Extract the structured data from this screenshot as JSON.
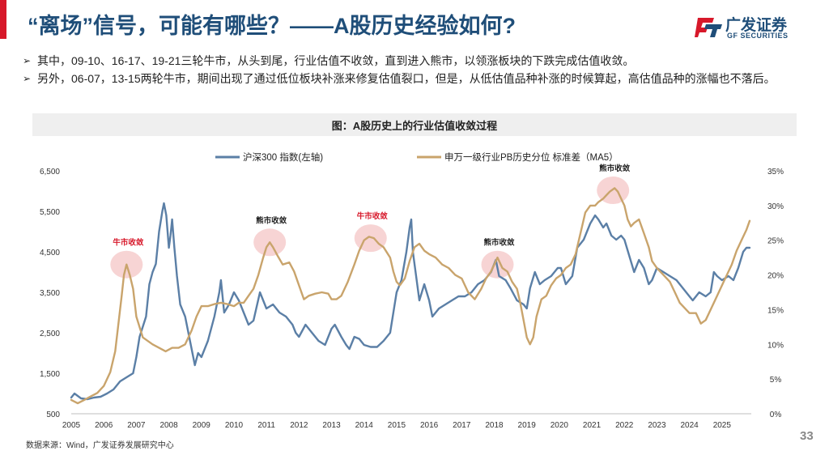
{
  "header": {
    "title": "“离场”信号，可能有哪些？——A股历史经验如何?",
    "logo_cn": "广发证券",
    "logo_en": "GF SECURITIES"
  },
  "bullets": [
    {
      "marker": "➢",
      "text": "其中，09-10、16-17、19-21三轮牛市，从头到尾，行业估值不收敛，直到进入熊市，以领涨板块的下跌完成估值收敛。"
    },
    {
      "marker": "➢",
      "text": "另外，06-07，13-15两轮牛市，期间出现了通过低位板块补涨来修复估值裂口，但是，从低估值品种补涨的时候算起，高估值品种的涨幅也不落后。"
    }
  ],
  "footer": {
    "source": "数据来源：Wind，广发证券发展研究中心",
    "page_number": "33"
  },
  "colors": {
    "title": "#1f4e79",
    "accent_red": "#d7182a",
    "series_left": "#5b7fa6",
    "series_right": "#c9a46c",
    "highlight": "#f4c6c6"
  },
  "chart_data": {
    "type": "line",
    "title": "图：A股历史上的行业估值收敛过程",
    "legend_position": "top",
    "xlim": [
      2005.0,
      2025.9
    ],
    "x_ticks": [
      "2005",
      "2006",
      "2007",
      "2008",
      "2009",
      "2010",
      "2011",
      "2012",
      "2013",
      "2014",
      "2015",
      "2016",
      "2017",
      "2018",
      "2019",
      "2020",
      "2021",
      "2022",
      "2023",
      "2024",
      "2025"
    ],
    "y_left": {
      "lim": [
        500,
        6500
      ],
      "ticks": [
        "500",
        "1,500",
        "2,500",
        "3,500",
        "4,500",
        "5,500",
        "6,500"
      ]
    },
    "y_right": {
      "lim": [
        0,
        35
      ],
      "ticks": [
        "0%",
        "5%",
        "10%",
        "15%",
        "20%",
        "25%",
        "30%",
        "35%"
      ]
    },
    "grid": false,
    "series": [
      {
        "name": "沪深300 指数(左轴)",
        "axis": "left",
        "points": [
          [
            2005.0,
            900
          ],
          [
            2005.1,
            1000
          ],
          [
            2005.3,
            880
          ],
          [
            2005.5,
            860
          ],
          [
            2005.7,
            900
          ],
          [
            2005.9,
            920
          ],
          [
            2006.1,
            1000
          ],
          [
            2006.3,
            1100
          ],
          [
            2006.5,
            1300
          ],
          [
            2006.7,
            1400
          ],
          [
            2006.9,
            1500
          ],
          [
            2007.0,
            1900
          ],
          [
            2007.1,
            2400
          ],
          [
            2007.3,
            2900
          ],
          [
            2007.4,
            3700
          ],
          [
            2007.5,
            4000
          ],
          [
            2007.6,
            4200
          ],
          [
            2007.7,
            5000
          ],
          [
            2007.8,
            5500
          ],
          [
            2007.85,
            5700
          ],
          [
            2007.92,
            5400
          ],
          [
            2008.0,
            4600
          ],
          [
            2008.05,
            4900
          ],
          [
            2008.1,
            5300
          ],
          [
            2008.17,
            4600
          ],
          [
            2008.25,
            3900
          ],
          [
            2008.35,
            3200
          ],
          [
            2008.5,
            2900
          ],
          [
            2008.6,
            2500
          ],
          [
            2008.7,
            2100
          ],
          [
            2008.8,
            1700
          ],
          [
            2008.9,
            2000
          ],
          [
            2009.0,
            1900
          ],
          [
            2009.2,
            2300
          ],
          [
            2009.4,
            2900
          ],
          [
            2009.55,
            3500
          ],
          [
            2009.6,
            3800
          ],
          [
            2009.7,
            3000
          ],
          [
            2009.85,
            3200
          ],
          [
            2010.0,
            3500
          ],
          [
            2010.15,
            3300
          ],
          [
            2010.3,
            3000
          ],
          [
            2010.45,
            2700
          ],
          [
            2010.6,
            2800
          ],
          [
            2010.8,
            3500
          ],
          [
            2010.9,
            3300
          ],
          [
            2011.0,
            3100
          ],
          [
            2011.2,
            3200
          ],
          [
            2011.4,
            3000
          ],
          [
            2011.6,
            2900
          ],
          [
            2011.8,
            2700
          ],
          [
            2011.9,
            2500
          ],
          [
            2012.0,
            2400
          ],
          [
            2012.2,
            2700
          ],
          [
            2012.4,
            2500
          ],
          [
            2012.6,
            2300
          ],
          [
            2012.8,
            2200
          ],
          [
            2012.9,
            2400
          ],
          [
            2013.0,
            2600
          ],
          [
            2013.1,
            2700
          ],
          [
            2013.3,
            2400
          ],
          [
            2013.45,
            2200
          ],
          [
            2013.55,
            2100
          ],
          [
            2013.7,
            2400
          ],
          [
            2013.85,
            2350
          ],
          [
            2014.0,
            2200
          ],
          [
            2014.2,
            2150
          ],
          [
            2014.4,
            2150
          ],
          [
            2014.6,
            2300
          ],
          [
            2014.8,
            2500
          ],
          [
            2014.9,
            3000
          ],
          [
            2015.0,
            3500
          ],
          [
            2015.15,
            3800
          ],
          [
            2015.3,
            4500
          ],
          [
            2015.4,
            5100
          ],
          [
            2015.45,
            5300
          ],
          [
            2015.5,
            4500
          ],
          [
            2015.6,
            3900
          ],
          [
            2015.7,
            3300
          ],
          [
            2015.85,
            3700
          ],
          [
            2016.0,
            3300
          ],
          [
            2016.1,
            2900
          ],
          [
            2016.3,
            3100
          ],
          [
            2016.5,
            3200
          ],
          [
            2016.7,
            3300
          ],
          [
            2016.9,
            3400
          ],
          [
            2017.1,
            3400
          ],
          [
            2017.3,
            3500
          ],
          [
            2017.5,
            3700
          ],
          [
            2017.7,
            3800
          ],
          [
            2017.9,
            4000
          ],
          [
            2018.0,
            4200
          ],
          [
            2018.05,
            4300
          ],
          [
            2018.15,
            3900
          ],
          [
            2018.35,
            3800
          ],
          [
            2018.5,
            3600
          ],
          [
            2018.7,
            3300
          ],
          [
            2018.9,
            3200
          ],
          [
            2019.0,
            3100
          ],
          [
            2019.1,
            3600
          ],
          [
            2019.25,
            4000
          ],
          [
            2019.4,
            3700
          ],
          [
            2019.55,
            3800
          ],
          [
            2019.75,
            3900
          ],
          [
            2019.95,
            4100
          ],
          [
            2020.05,
            4100
          ],
          [
            2020.2,
            3700
          ],
          [
            2020.4,
            3900
          ],
          [
            2020.55,
            4600
          ],
          [
            2020.75,
            4800
          ],
          [
            2020.95,
            5200
          ],
          [
            2021.1,
            5400
          ],
          [
            2021.2,
            5300
          ],
          [
            2021.35,
            5100
          ],
          [
            2021.45,
            5200
          ],
          [
            2021.6,
            4900
          ],
          [
            2021.75,
            4800
          ],
          [
            2021.9,
            4900
          ],
          [
            2022.0,
            4800
          ],
          [
            2022.15,
            4400
          ],
          [
            2022.3,
            4000
          ],
          [
            2022.45,
            4300
          ],
          [
            2022.6,
            4100
          ],
          [
            2022.75,
            3700
          ],
          [
            2022.85,
            3800
          ],
          [
            2023.0,
            4100
          ],
          [
            2023.2,
            4000
          ],
          [
            2023.4,
            3900
          ],
          [
            2023.6,
            3800
          ],
          [
            2023.8,
            3600
          ],
          [
            2024.0,
            3400
          ],
          [
            2024.1,
            3300
          ],
          [
            2024.3,
            3500
          ],
          [
            2024.5,
            3400
          ],
          [
            2024.65,
            3500
          ],
          [
            2024.75,
            4000
          ],
          [
            2024.85,
            3900
          ],
          [
            2025.0,
            3800
          ],
          [
            2025.2,
            3900
          ],
          [
            2025.35,
            3800
          ],
          [
            2025.5,
            4100
          ],
          [
            2025.65,
            4500
          ],
          [
            2025.75,
            4600
          ],
          [
            2025.85,
            4600
          ]
        ]
      },
      {
        "name": "申万一级行业PB历史分位 标准差（MA5）",
        "axis": "right",
        "points": [
          [
            2005.0,
            2
          ],
          [
            2005.2,
            1.5
          ],
          [
            2005.4,
            2
          ],
          [
            2005.6,
            2.5
          ],
          [
            2005.8,
            3
          ],
          [
            2006.0,
            4
          ],
          [
            2006.2,
            6
          ],
          [
            2006.35,
            9
          ],
          [
            2006.45,
            13
          ],
          [
            2006.55,
            17
          ],
          [
            2006.62,
            20
          ],
          [
            2006.7,
            21.5
          ],
          [
            2006.8,
            20
          ],
          [
            2006.9,
            18
          ],
          [
            2007.0,
            14
          ],
          [
            2007.2,
            11
          ],
          [
            2007.5,
            10
          ],
          [
            2007.7,
            9.5
          ],
          [
            2007.9,
            9
          ],
          [
            2008.1,
            9.5
          ],
          [
            2008.3,
            9.5
          ],
          [
            2008.5,
            10
          ],
          [
            2008.7,
            12
          ],
          [
            2008.85,
            14
          ],
          [
            2009.0,
            15.5
          ],
          [
            2009.2,
            15.5
          ],
          [
            2009.4,
            15.8
          ],
          [
            2009.6,
            16
          ],
          [
            2009.8,
            15.8
          ],
          [
            2010.0,
            15.5
          ],
          [
            2010.15,
            16
          ],
          [
            2010.3,
            16
          ],
          [
            2010.45,
            17
          ],
          [
            2010.6,
            18
          ],
          [
            2010.75,
            20
          ],
          [
            2010.9,
            22.5
          ],
          [
            2011.0,
            24
          ],
          [
            2011.1,
            24.7
          ],
          [
            2011.2,
            24
          ],
          [
            2011.35,
            22.7
          ],
          [
            2011.5,
            21.5
          ],
          [
            2011.7,
            21.8
          ],
          [
            2011.85,
            20.5
          ],
          [
            2012.0,
            18.5
          ],
          [
            2012.15,
            16.5
          ],
          [
            2012.3,
            17
          ],
          [
            2012.5,
            17.3
          ],
          [
            2012.7,
            17.5
          ],
          [
            2012.9,
            17.3
          ],
          [
            2013.0,
            16.5
          ],
          [
            2013.15,
            16.5
          ],
          [
            2013.3,
            17
          ],
          [
            2013.5,
            19
          ],
          [
            2013.7,
            21.5
          ],
          [
            2013.85,
            23.5
          ],
          [
            2014.0,
            25
          ],
          [
            2014.15,
            25.5
          ],
          [
            2014.3,
            25.3
          ],
          [
            2014.45,
            24.5
          ],
          [
            2014.6,
            24
          ],
          [
            2014.8,
            22.5
          ],
          [
            2014.9,
            20.5
          ],
          [
            2015.0,
            19
          ],
          [
            2015.1,
            18.5
          ],
          [
            2015.25,
            19.5
          ],
          [
            2015.4,
            22
          ],
          [
            2015.55,
            24
          ],
          [
            2015.7,
            24.5
          ],
          [
            2015.85,
            23.5
          ],
          [
            2016.0,
            23
          ],
          [
            2016.2,
            22.5
          ],
          [
            2016.4,
            21.5
          ],
          [
            2016.6,
            21
          ],
          [
            2016.8,
            20
          ],
          [
            2017.0,
            19.5
          ],
          [
            2017.2,
            17.5
          ],
          [
            2017.4,
            16.5
          ],
          [
            2017.6,
            18
          ],
          [
            2017.75,
            19.5
          ],
          [
            2017.9,
            20.5
          ],
          [
            2018.0,
            21.5
          ],
          [
            2018.1,
            22.5
          ],
          [
            2018.25,
            21
          ],
          [
            2018.4,
            20.5
          ],
          [
            2018.55,
            19
          ],
          [
            2018.7,
            18
          ],
          [
            2018.8,
            16
          ],
          [
            2018.9,
            13.5
          ],
          [
            2019.0,
            11
          ],
          [
            2019.1,
            10
          ],
          [
            2019.2,
            11
          ],
          [
            2019.3,
            14
          ],
          [
            2019.45,
            16.5
          ],
          [
            2019.6,
            17
          ],
          [
            2019.75,
            18.5
          ],
          [
            2019.9,
            19.5
          ],
          [
            2020.05,
            20
          ],
          [
            2020.2,
            21
          ],
          [
            2020.35,
            21.5
          ],
          [
            2020.5,
            23
          ],
          [
            2020.6,
            25
          ],
          [
            2020.7,
            27
          ],
          [
            2020.8,
            29
          ],
          [
            2020.95,
            30
          ],
          [
            2021.1,
            30
          ],
          [
            2021.2,
            30.5
          ],
          [
            2021.35,
            31
          ],
          [
            2021.45,
            31.5
          ],
          [
            2021.55,
            32
          ],
          [
            2021.7,
            32.5
          ],
          [
            2021.8,
            32
          ],
          [
            2021.9,
            31
          ],
          [
            2022.0,
            30
          ],
          [
            2022.1,
            28
          ],
          [
            2022.2,
            27
          ],
          [
            2022.3,
            27.5
          ],
          [
            2022.45,
            28
          ],
          [
            2022.6,
            26
          ],
          [
            2022.75,
            24
          ],
          [
            2022.85,
            22
          ],
          [
            2023.0,
            21
          ],
          [
            2023.2,
            20
          ],
          [
            2023.4,
            19
          ],
          [
            2023.55,
            17.5
          ],
          [
            2023.7,
            16
          ],
          [
            2023.9,
            15
          ],
          [
            2024.0,
            14.5
          ],
          [
            2024.2,
            14.5
          ],
          [
            2024.35,
            13
          ],
          [
            2024.5,
            13.5
          ],
          [
            2024.65,
            15
          ],
          [
            2024.8,
            16.5
          ],
          [
            2024.95,
            18
          ],
          [
            2025.1,
            19.5
          ],
          [
            2025.3,
            21.5
          ],
          [
            2025.45,
            23.5
          ],
          [
            2025.6,
            25
          ],
          [
            2025.75,
            26.5
          ],
          [
            2025.85,
            27.8
          ]
        ]
      }
    ],
    "annotations": [
      {
        "text": "牛市收敛",
        "color": "#d7182a",
        "x": 2006.7,
        "y_right": 21.5
      },
      {
        "text": "熊市收敛",
        "color": "#222222",
        "x": 2011.1,
        "y_right": 24.7
      },
      {
        "text": "牛市收敛",
        "color": "#d7182a",
        "x": 2014.2,
        "y_right": 25.3
      },
      {
        "text": "熊市收敛",
        "color": "#222222",
        "x": 2018.1,
        "y_right": 21.5
      },
      {
        "text": "熊市收敛",
        "color": "#222222",
        "x": 2021.65,
        "y_right": 32.2
      }
    ]
  }
}
